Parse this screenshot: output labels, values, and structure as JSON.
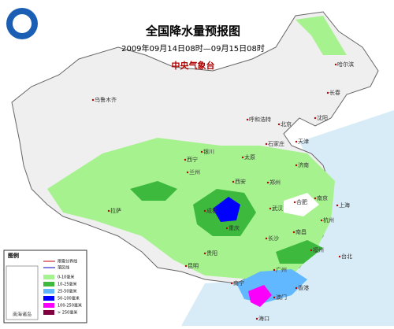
{
  "header": {
    "title": "全国降水量预报图",
    "period": "2009年09月14日08时—09月15日08时",
    "agency": "中央气象台"
  },
  "cities": [
    "乌鲁木齐",
    "哈尔滨",
    "长春",
    "沈阳",
    "呼和浩特",
    "北京",
    "天津",
    "石家庄",
    "太原",
    "济南",
    "银川",
    "兰州",
    "西宁",
    "西安",
    "郑州",
    "合肥",
    "南京",
    "上海",
    "杭州",
    "武汉",
    "成都",
    "重庆",
    "拉萨",
    "长沙",
    "南昌",
    "福州",
    "台北",
    "贵阳",
    "昆明",
    "南宁",
    "广州",
    "澳门",
    "香港",
    "海口"
  ],
  "legend": {
    "title": "图例",
    "lines": [
      "雨雪分界线",
      "落区线"
    ],
    "items": [
      {
        "label": "0-10毫米",
        "color": "#a6f28f"
      },
      {
        "label": "10-25毫米",
        "color": "#3dba3d"
      },
      {
        "label": "25-50毫米",
        "color": "#61b8ff"
      },
      {
        "label": "50-100毫米",
        "color": "#0000ff"
      },
      {
        "label": "100-250毫米",
        "color": "#fa00fa"
      },
      {
        "label": "> 250毫米",
        "color": "#800040"
      }
    ]
  },
  "inset": "南海诸岛"
}
